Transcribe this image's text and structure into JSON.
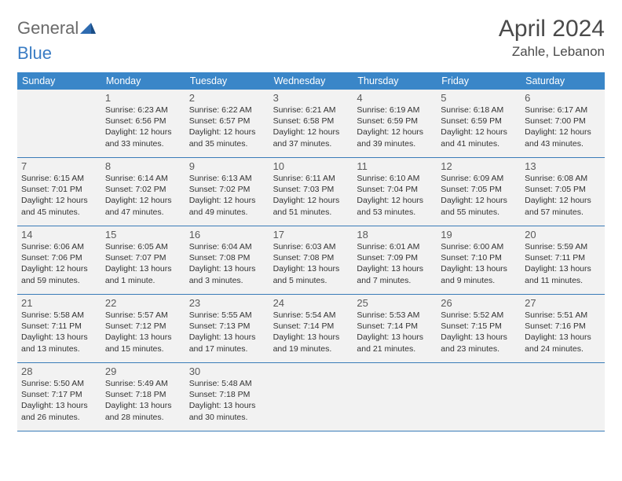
{
  "logo": {
    "line1": "General",
    "line2": "Blue"
  },
  "title": "April 2024",
  "location": "Zahle, Lebanon",
  "colors": {
    "header_bg": "#3a86c8",
    "header_text": "#ffffff",
    "cell_bg": "#f2f2f2",
    "row_border": "#3a7cb8",
    "logo_gray": "#6a6a6a",
    "logo_blue": "#3a7cc4",
    "text": "#333333",
    "daynum": "#5a5a5a"
  },
  "weekdays": [
    "Sunday",
    "Monday",
    "Tuesday",
    "Wednesday",
    "Thursday",
    "Friday",
    "Saturday"
  ],
  "weeks": [
    [
      {
        "n": "",
        "sr": "",
        "ss": "",
        "d1": "",
        "d2": ""
      },
      {
        "n": "1",
        "sr": "Sunrise: 6:23 AM",
        "ss": "Sunset: 6:56 PM",
        "d1": "Daylight: 12 hours",
        "d2": "and 33 minutes."
      },
      {
        "n": "2",
        "sr": "Sunrise: 6:22 AM",
        "ss": "Sunset: 6:57 PM",
        "d1": "Daylight: 12 hours",
        "d2": "and 35 minutes."
      },
      {
        "n": "3",
        "sr": "Sunrise: 6:21 AM",
        "ss": "Sunset: 6:58 PM",
        "d1": "Daylight: 12 hours",
        "d2": "and 37 minutes."
      },
      {
        "n": "4",
        "sr": "Sunrise: 6:19 AM",
        "ss": "Sunset: 6:59 PM",
        "d1": "Daylight: 12 hours",
        "d2": "and 39 minutes."
      },
      {
        "n": "5",
        "sr": "Sunrise: 6:18 AM",
        "ss": "Sunset: 6:59 PM",
        "d1": "Daylight: 12 hours",
        "d2": "and 41 minutes."
      },
      {
        "n": "6",
        "sr": "Sunrise: 6:17 AM",
        "ss": "Sunset: 7:00 PM",
        "d1": "Daylight: 12 hours",
        "d2": "and 43 minutes."
      }
    ],
    [
      {
        "n": "7",
        "sr": "Sunrise: 6:15 AM",
        "ss": "Sunset: 7:01 PM",
        "d1": "Daylight: 12 hours",
        "d2": "and 45 minutes."
      },
      {
        "n": "8",
        "sr": "Sunrise: 6:14 AM",
        "ss": "Sunset: 7:02 PM",
        "d1": "Daylight: 12 hours",
        "d2": "and 47 minutes."
      },
      {
        "n": "9",
        "sr": "Sunrise: 6:13 AM",
        "ss": "Sunset: 7:02 PM",
        "d1": "Daylight: 12 hours",
        "d2": "and 49 minutes."
      },
      {
        "n": "10",
        "sr": "Sunrise: 6:11 AM",
        "ss": "Sunset: 7:03 PM",
        "d1": "Daylight: 12 hours",
        "d2": "and 51 minutes."
      },
      {
        "n": "11",
        "sr": "Sunrise: 6:10 AM",
        "ss": "Sunset: 7:04 PM",
        "d1": "Daylight: 12 hours",
        "d2": "and 53 minutes."
      },
      {
        "n": "12",
        "sr": "Sunrise: 6:09 AM",
        "ss": "Sunset: 7:05 PM",
        "d1": "Daylight: 12 hours",
        "d2": "and 55 minutes."
      },
      {
        "n": "13",
        "sr": "Sunrise: 6:08 AM",
        "ss": "Sunset: 7:05 PM",
        "d1": "Daylight: 12 hours",
        "d2": "and 57 minutes."
      }
    ],
    [
      {
        "n": "14",
        "sr": "Sunrise: 6:06 AM",
        "ss": "Sunset: 7:06 PM",
        "d1": "Daylight: 12 hours",
        "d2": "and 59 minutes."
      },
      {
        "n": "15",
        "sr": "Sunrise: 6:05 AM",
        "ss": "Sunset: 7:07 PM",
        "d1": "Daylight: 13 hours",
        "d2": "and 1 minute."
      },
      {
        "n": "16",
        "sr": "Sunrise: 6:04 AM",
        "ss": "Sunset: 7:08 PM",
        "d1": "Daylight: 13 hours",
        "d2": "and 3 minutes."
      },
      {
        "n": "17",
        "sr": "Sunrise: 6:03 AM",
        "ss": "Sunset: 7:08 PM",
        "d1": "Daylight: 13 hours",
        "d2": "and 5 minutes."
      },
      {
        "n": "18",
        "sr": "Sunrise: 6:01 AM",
        "ss": "Sunset: 7:09 PM",
        "d1": "Daylight: 13 hours",
        "d2": "and 7 minutes."
      },
      {
        "n": "19",
        "sr": "Sunrise: 6:00 AM",
        "ss": "Sunset: 7:10 PM",
        "d1": "Daylight: 13 hours",
        "d2": "and 9 minutes."
      },
      {
        "n": "20",
        "sr": "Sunrise: 5:59 AM",
        "ss": "Sunset: 7:11 PM",
        "d1": "Daylight: 13 hours",
        "d2": "and 11 minutes."
      }
    ],
    [
      {
        "n": "21",
        "sr": "Sunrise: 5:58 AM",
        "ss": "Sunset: 7:11 PM",
        "d1": "Daylight: 13 hours",
        "d2": "and 13 minutes."
      },
      {
        "n": "22",
        "sr": "Sunrise: 5:57 AM",
        "ss": "Sunset: 7:12 PM",
        "d1": "Daylight: 13 hours",
        "d2": "and 15 minutes."
      },
      {
        "n": "23",
        "sr": "Sunrise: 5:55 AM",
        "ss": "Sunset: 7:13 PM",
        "d1": "Daylight: 13 hours",
        "d2": "and 17 minutes."
      },
      {
        "n": "24",
        "sr": "Sunrise: 5:54 AM",
        "ss": "Sunset: 7:14 PM",
        "d1": "Daylight: 13 hours",
        "d2": "and 19 minutes."
      },
      {
        "n": "25",
        "sr": "Sunrise: 5:53 AM",
        "ss": "Sunset: 7:14 PM",
        "d1": "Daylight: 13 hours",
        "d2": "and 21 minutes."
      },
      {
        "n": "26",
        "sr": "Sunrise: 5:52 AM",
        "ss": "Sunset: 7:15 PM",
        "d1": "Daylight: 13 hours",
        "d2": "and 23 minutes."
      },
      {
        "n": "27",
        "sr": "Sunrise: 5:51 AM",
        "ss": "Sunset: 7:16 PM",
        "d1": "Daylight: 13 hours",
        "d2": "and 24 minutes."
      }
    ],
    [
      {
        "n": "28",
        "sr": "Sunrise: 5:50 AM",
        "ss": "Sunset: 7:17 PM",
        "d1": "Daylight: 13 hours",
        "d2": "and 26 minutes."
      },
      {
        "n": "29",
        "sr": "Sunrise: 5:49 AM",
        "ss": "Sunset: 7:18 PM",
        "d1": "Daylight: 13 hours",
        "d2": "and 28 minutes."
      },
      {
        "n": "30",
        "sr": "Sunrise: 5:48 AM",
        "ss": "Sunset: 7:18 PM",
        "d1": "Daylight: 13 hours",
        "d2": "and 30 minutes."
      },
      {
        "n": "",
        "sr": "",
        "ss": "",
        "d1": "",
        "d2": ""
      },
      {
        "n": "",
        "sr": "",
        "ss": "",
        "d1": "",
        "d2": ""
      },
      {
        "n": "",
        "sr": "",
        "ss": "",
        "d1": "",
        "d2": ""
      },
      {
        "n": "",
        "sr": "",
        "ss": "",
        "d1": "",
        "d2": ""
      }
    ]
  ]
}
